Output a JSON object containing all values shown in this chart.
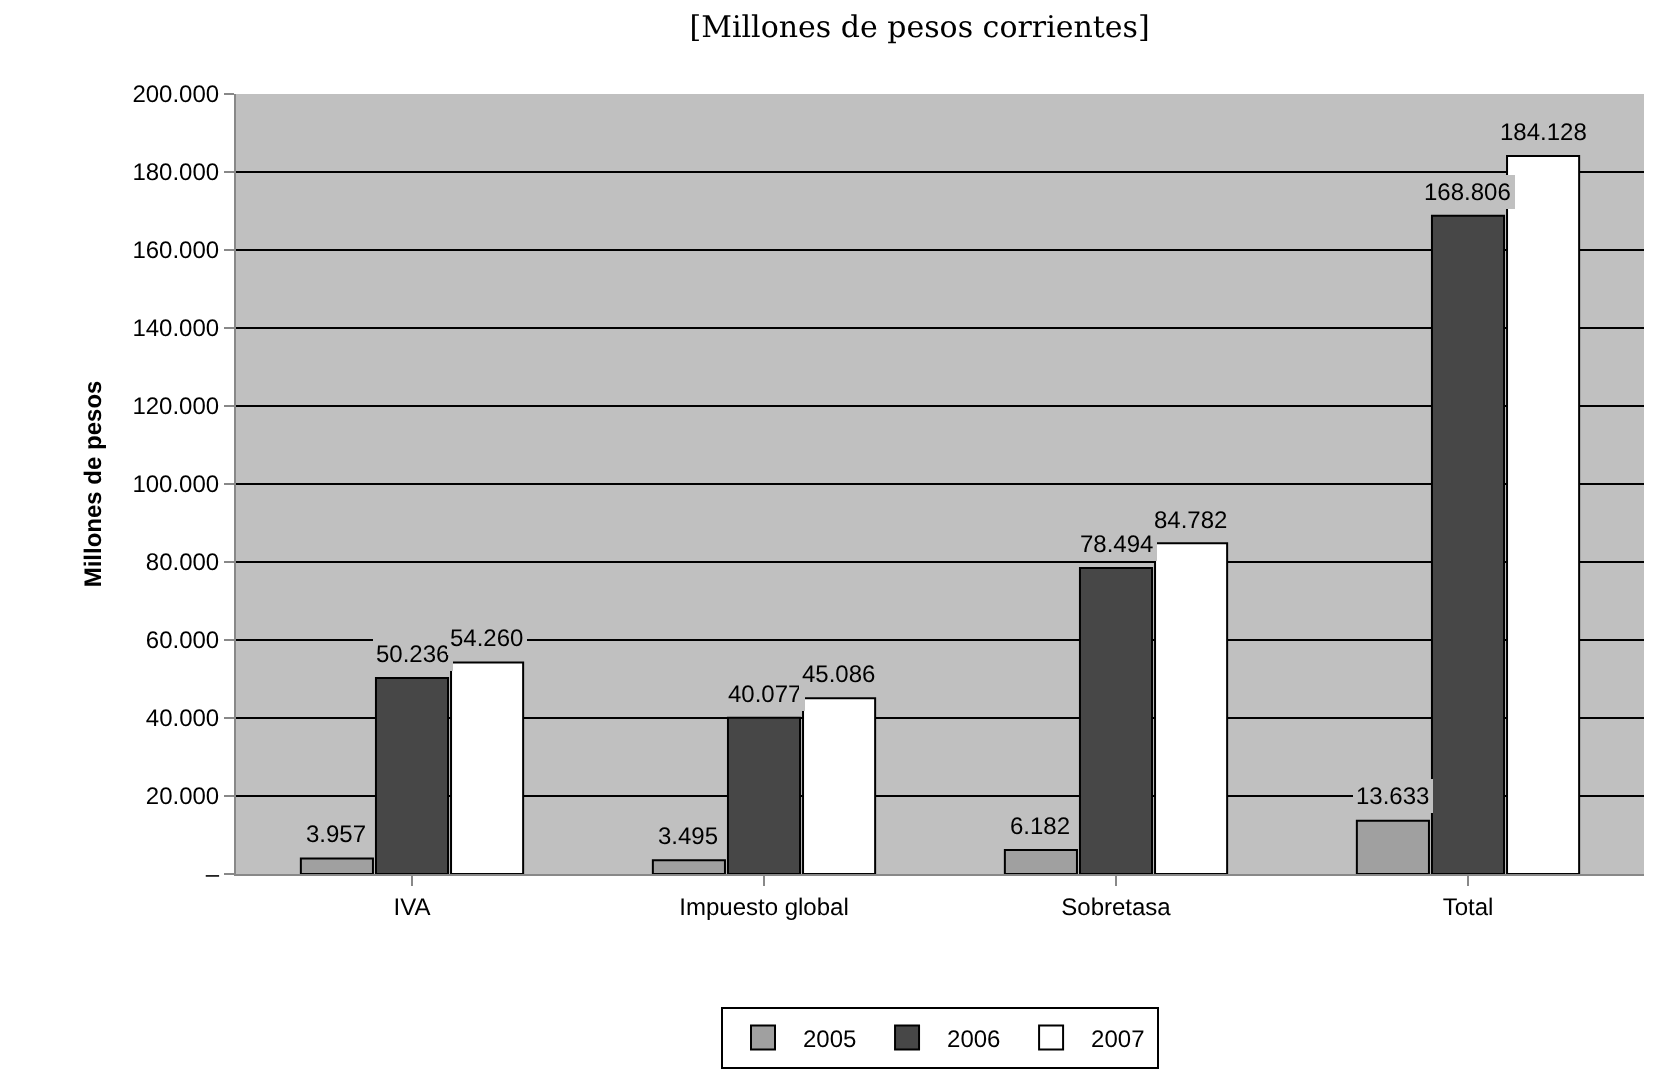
{
  "chart_data": {
    "type": "bar",
    "title": "[Millones de pesos corrientes]",
    "ylabel": "Millones de pesos",
    "categories": [
      "IVA",
      "Impuesto global",
      "Sobretasa",
      "Total"
    ],
    "series": [
      {
        "name": "2005",
        "color": "#a0a0a0",
        "values": [
          3957,
          3495,
          6182,
          13633
        ],
        "value_labels": [
          "3.957",
          "3.495",
          "6.182",
          "13.633"
        ]
      },
      {
        "name": "2006",
        "color": "#474747",
        "values": [
          50236,
          40077,
          78494,
          168806
        ],
        "value_labels": [
          "50.236",
          "40.077",
          "78.494",
          "168.806"
        ]
      },
      {
        "name": "2007",
        "color": "#ffffff",
        "values": [
          54260,
          45086,
          84782,
          184128
        ],
        "value_labels": [
          "54.260",
          "45.086",
          "84.782",
          "184.128"
        ]
      }
    ],
    "ylim": [
      0,
      200000
    ],
    "yticks": [
      {
        "value": 0,
        "label": "–"
      },
      {
        "value": 20000,
        "label": "20.000"
      },
      {
        "value": 40000,
        "label": "40.000"
      },
      {
        "value": 60000,
        "label": "60.000"
      },
      {
        "value": 80000,
        "label": "80.000"
      },
      {
        "value": 100000,
        "label": "100.000"
      },
      {
        "value": 120000,
        "label": "120.000"
      },
      {
        "value": 140000,
        "label": "140.000"
      },
      {
        "value": 160000,
        "label": "160.000"
      },
      {
        "value": 180000,
        "label": "180.000"
      },
      {
        "value": 200000,
        "label": "200.000"
      }
    ],
    "grid": "y",
    "legend": "bottom"
  }
}
